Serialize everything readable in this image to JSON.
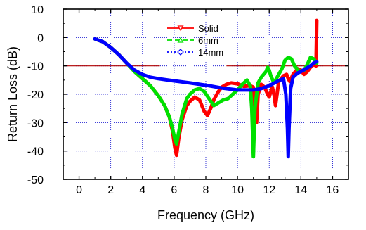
{
  "chart_data": {
    "type": "line",
    "xlabel": "Frequency (GHz)",
    "ylabel": "Return Loss (dB)",
    "xlim": [
      -1,
      17
    ],
    "ylim": [
      -50,
      10
    ],
    "xticks": [
      0,
      2,
      4,
      6,
      8,
      10,
      12,
      14,
      16
    ],
    "yticks": [
      10,
      0,
      -10,
      -20,
      -30,
      -40,
      -50
    ],
    "grid": true,
    "legend_position": "top-center",
    "reference_level": -10,
    "reference_line_color": "#b00000",
    "series": [
      {
        "name": "Solid",
        "color": "#ff0000",
        "marker": "triangle-down",
        "dash": "solid",
        "x": [
          1.0,
          1.5,
          2.0,
          2.5,
          3.0,
          3.5,
          4.0,
          4.5,
          5.0,
          5.4,
          5.7,
          5.9,
          6.05,
          6.15,
          6.3,
          6.5,
          6.8,
          7.0,
          7.3,
          7.6,
          7.9,
          8.1,
          8.3,
          8.5,
          8.8,
          9.0,
          9.3,
          9.6,
          10.0,
          10.4,
          10.8,
          11.0,
          11.1,
          11.2,
          11.3,
          11.5,
          11.7,
          11.9,
          12.0,
          12.1,
          12.2,
          12.3,
          12.4,
          12.6,
          12.9,
          13.1,
          13.2,
          13.3,
          13.5,
          13.8,
          14.0,
          14.2,
          14.4,
          14.6,
          14.8,
          14.95,
          15.0
        ],
        "y": [
          -0.5,
          -1.5,
          -3.5,
          -6.0,
          -9.0,
          -12.0,
          -14.5,
          -17.0,
          -20.5,
          -24.0,
          -28.0,
          -33.0,
          -39.0,
          -41.5,
          -35.0,
          -29.0,
          -24.0,
          -22.5,
          -21.0,
          -22.0,
          -26.0,
          -27.5,
          -25.0,
          -22.0,
          -19.0,
          -17.5,
          -16.5,
          -16.0,
          -16.3,
          -17.2,
          -17.0,
          -17.5,
          -24.0,
          -30.0,
          -20.0,
          -16.5,
          -17.5,
          -20.0,
          -21.0,
          -19.0,
          -17.5,
          -20.0,
          -24.0,
          -15.5,
          -13.5,
          -13.0,
          -14.5,
          -15.5,
          -13.0,
          -11.0,
          -11.5,
          -13.0,
          -12.0,
          -10.5,
          -9.5,
          -10.0,
          6.0
        ]
      },
      {
        "name": "6mm",
        "color": "#00e000",
        "marker": "triangle-up",
        "dash": "dashed",
        "x": [
          1.0,
          1.5,
          2.0,
          2.5,
          3.0,
          3.5,
          4.0,
          4.5,
          5.0,
          5.4,
          5.7,
          5.9,
          6.05,
          6.15,
          6.3,
          6.5,
          6.8,
          7.0,
          7.3,
          7.6,
          7.9,
          8.2,
          8.5,
          8.8,
          9.1,
          9.4,
          9.7,
          10.0,
          10.3,
          10.6,
          10.8,
          10.9,
          11.0,
          11.1,
          11.3,
          11.5,
          11.8,
          11.9,
          12.0,
          12.1,
          12.3,
          12.5,
          12.8,
          13.0,
          13.2,
          13.4,
          13.6,
          13.9,
          14.2,
          14.4,
          14.6,
          14.8,
          15.0
        ],
        "y": [
          -0.5,
          -1.5,
          -3.5,
          -6.0,
          -9.0,
          -12.0,
          -14.5,
          -17.0,
          -20.5,
          -24.0,
          -28.0,
          -32.0,
          -36.0,
          -37.5,
          -33.0,
          -27.0,
          -21.5,
          -20.0,
          -18.5,
          -18.0,
          -19.0,
          -21.5,
          -24.0,
          -23.0,
          -22.0,
          -21.5,
          -20.0,
          -18.5,
          -16.5,
          -15.0,
          -17.0,
          -25.0,
          -42.0,
          -25.0,
          -16.0,
          -14.0,
          -12.0,
          -10.5,
          -11.5,
          -13.5,
          -16.0,
          -14.0,
          -11.0,
          -8.0,
          -7.0,
          -7.5,
          -10.0,
          -12.0,
          -11.5,
          -9.5,
          -7.0,
          -7.5,
          -9.0
        ]
      },
      {
        "name": "14mm",
        "color": "#0000ff",
        "marker": "diamond",
        "dash": "dotted",
        "x": [
          1.0,
          1.5,
          2.0,
          2.5,
          3.0,
          3.5,
          4.0,
          4.5,
          5.0,
          6.0,
          7.0,
          8.0,
          9.0,
          10.0,
          11.0,
          11.5,
          12.0,
          12.5,
          12.9,
          13.05,
          13.15,
          13.2,
          13.25,
          13.35,
          13.5,
          13.8,
          14.0,
          14.3,
          14.6,
          14.8,
          15.0
        ],
        "y": [
          -0.5,
          -1.5,
          -3.5,
          -6.0,
          -9.0,
          -11.5,
          -13.0,
          -14.0,
          -14.5,
          -15.3,
          -16.0,
          -16.8,
          -17.8,
          -18.5,
          -18.5,
          -18.0,
          -17.0,
          -15.5,
          -14.5,
          -20.0,
          -32.0,
          -42.0,
          -32.0,
          -18.0,
          -14.0,
          -12.5,
          -12.0,
          -11.0,
          -10.0,
          -9.0,
          -8.5
        ]
      }
    ]
  }
}
